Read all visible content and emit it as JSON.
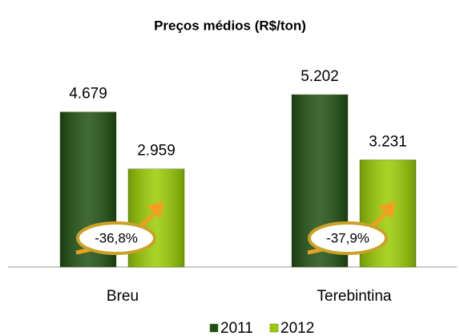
{
  "chart_data": {
    "type": "bar",
    "title": "Preços médios (R$/ton)",
    "categories": [
      "Breu",
      "Terebintina"
    ],
    "series": [
      {
        "name": "2011",
        "color": "#1f4f12",
        "values": [
          4679,
          5202
        ],
        "value_labels": [
          "4.679",
          "5.202"
        ]
      },
      {
        "name": "2012",
        "color": "#99cc00",
        "values": [
          2959,
          3231
        ],
        "value_labels": [
          "2.959",
          "3.231"
        ]
      }
    ],
    "annotations": [
      "-36,8%",
      "-37,9%"
    ],
    "legend": "bottom"
  }
}
